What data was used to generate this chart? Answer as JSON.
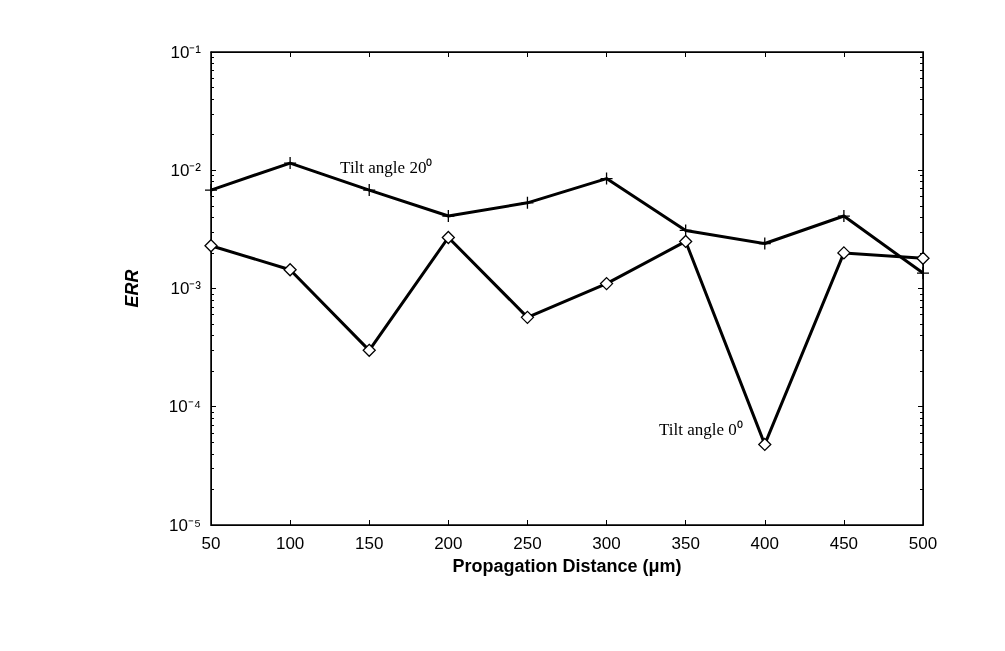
{
  "chart_data": {
    "type": "line",
    "xlabel": "Propagation Distance (μm)",
    "ylabel": "ERR",
    "x": [
      50,
      100,
      150,
      200,
      250,
      300,
      350,
      400,
      450,
      500
    ],
    "series": [
      {
        "name": "Tilt angle 20⁰",
        "color": "#000000",
        "marker": "cross",
        "values": [
          0.0068,
          0.0115,
          0.0068,
          0.0041,
          0.0053,
          0.0085,
          0.0031,
          0.0024,
          0.0041,
          0.00135
        ]
      },
      {
        "name": "Tilt angle 0⁰",
        "color": "#000000",
        "marker": "diamond",
        "values": [
          0.0023,
          0.00144,
          0.0003,
          0.0027,
          0.00057,
          0.0011,
          0.0025,
          4.8e-05,
          0.002,
          0.0018
        ]
      }
    ],
    "log": "y",
    "xlim": [
      50,
      500
    ],
    "xticks": [
      50,
      100,
      150,
      200,
      250,
      300,
      350,
      400,
      450,
      500
    ],
    "ylim": [
      1e-05,
      0.1
    ],
    "yticks": [
      {
        "value": 1e-05,
        "label": "10⁻⁵"
      },
      {
        "value": 0.0001,
        "label": "10⁻⁴"
      },
      {
        "value": 0.001,
        "label": "10⁻³"
      },
      {
        "value": 0.01,
        "label": "10⁻²"
      },
      {
        "value": 0.1,
        "label": "10⁻¹"
      }
    ],
    "grid": false,
    "line_style": "solid"
  }
}
